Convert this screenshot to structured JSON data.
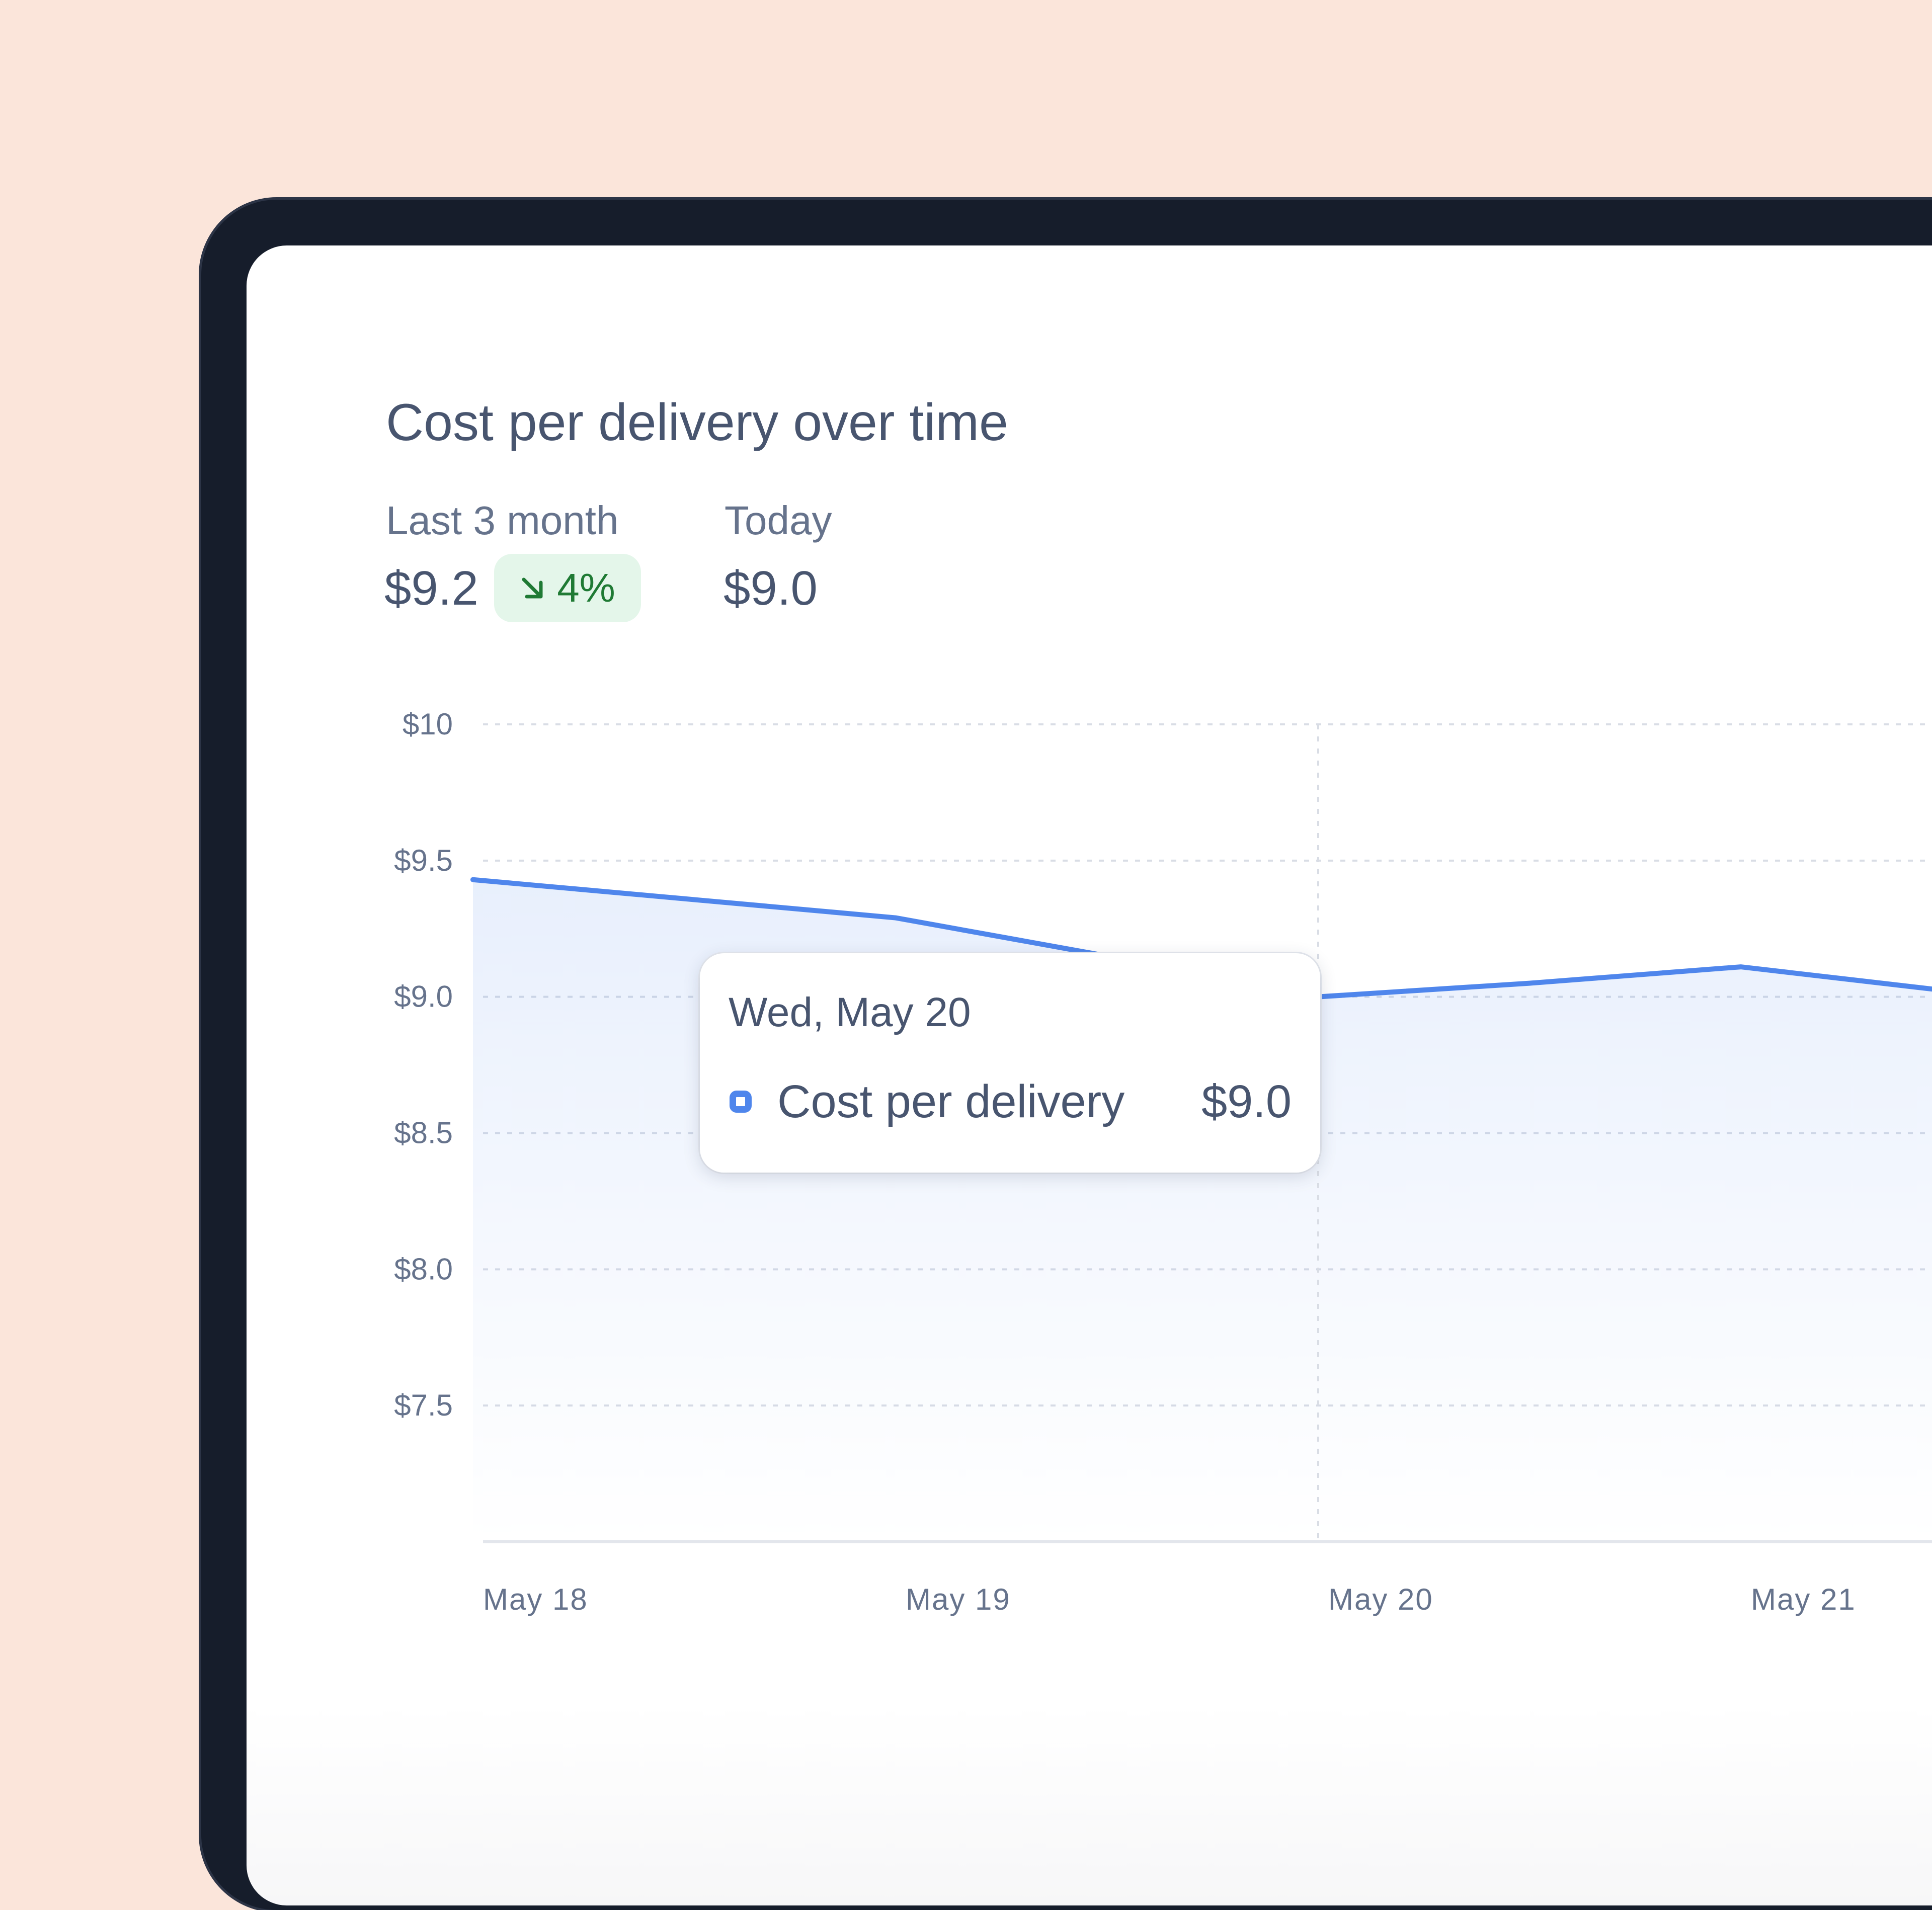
{
  "chart_data": {
    "type": "area",
    "title": "Cost per delivery over time",
    "xlabel": "",
    "ylabel": "",
    "categories": [
      "May 18",
      "May 19",
      "May 20",
      "May 21"
    ],
    "x": [
      "May 18",
      "May 18.5",
      "May 19",
      "May 19.5",
      "May 20",
      "May 20.5",
      "May 21",
      "May 21.5"
    ],
    "series": [
      {
        "name": "Cost per delivery",
        "color": "#4f86ec",
        "values": [
          9.43,
          9.36,
          9.29,
          9.15,
          9.0,
          9.05,
          9.11,
          9.02
        ]
      }
    ],
    "yticks": [
      "$7.5",
      "$8.0",
      "$8.5",
      "$9.0",
      "$9.5",
      "$10"
    ],
    "ytick_values": [
      7.5,
      8.0,
      8.5,
      9.0,
      9.5,
      10.0
    ],
    "ylim": [
      7.0,
      10.0
    ],
    "grid": true,
    "legend": "none",
    "highlighted_x": "May 20"
  },
  "stats": {
    "period_label": "Last 3 month",
    "period_value": "$9.2",
    "change": "4%",
    "change_direction": "down",
    "change_color": "#1f7a34",
    "today_label": "Today",
    "today_value": "$9.0"
  },
  "tooltip": {
    "date": "Wed, May 20",
    "series_name": "Cost per delivery",
    "value": "$9.0"
  },
  "colors": {
    "background": "#fbe5da",
    "device_frame": "#161d2b",
    "line": "#4f86ec",
    "text": "#48556f",
    "axis_text": "#66738c"
  }
}
